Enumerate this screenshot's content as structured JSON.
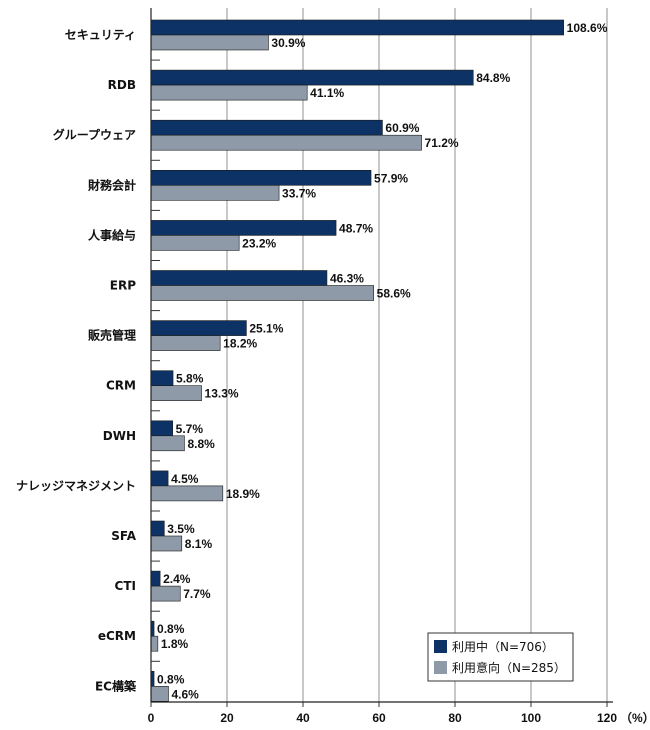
{
  "chart_data": {
    "type": "bar",
    "orientation": "horizontal",
    "categories": [
      "セキュリティ",
      "RDB",
      "グループウェア",
      "財務会計",
      "人事給与",
      "ERP",
      "販売管理",
      "CRM",
      "DWH",
      "ナレッジマネジメント",
      "SFA",
      "CTI",
      "eCRM",
      "EC構築"
    ],
    "series": [
      {
        "name": "利用中（N=706）",
        "color": "#0d3366",
        "values": [
          108.6,
          84.8,
          60.9,
          57.9,
          48.7,
          46.3,
          25.1,
          5.8,
          5.7,
          4.5,
          3.5,
          2.4,
          0.8,
          0.8
        ],
        "labels": [
          "108.6%",
          "84.8%",
          "60.9%",
          "57.9%",
          "48.7%",
          "46.3%",
          "25.1%",
          "5.8%",
          "5.7%",
          "4.5%",
          "3.5%",
          "2.4%",
          "0.8%",
          "0.8%"
        ]
      },
      {
        "name": "利用意向（N=285）",
        "color": "#8e9aa8",
        "values": [
          30.9,
          41.1,
          71.2,
          33.7,
          23.2,
          58.6,
          18.2,
          13.3,
          8.8,
          18.9,
          8.1,
          7.7,
          1.8,
          4.6
        ],
        "labels": [
          "30.9%",
          "41.1%",
          "71.2%",
          "33.7%",
          "23.2%",
          "58.6%",
          "18.2%",
          "13.3%",
          "8.8%",
          "18.9%",
          "8.1%",
          "7.7%",
          "1.8%",
          "4.6%"
        ]
      }
    ],
    "xlim": [
      0,
      120
    ],
    "xticks": [
      "0",
      "20",
      "40",
      "60",
      "80",
      "100",
      "120"
    ],
    "xunit": "（%）",
    "grid": true,
    "legend_position": "bottom-right"
  }
}
